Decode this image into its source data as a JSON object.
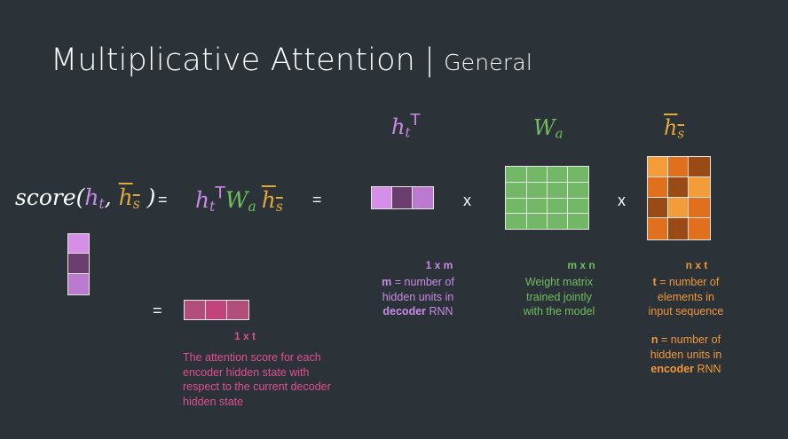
{
  "title": {
    "main": "Multiplicative Attention",
    "separator": "|",
    "sub": "General"
  },
  "equation": {
    "score_label": "score",
    "h": "h",
    "sub_t": "t",
    "sub_s": "s",
    "W": "W",
    "sub_a": "a",
    "T": "T",
    "equals": "=",
    "times": "x"
  },
  "labels": {
    "ht_header": "h",
    "wa_header": "W",
    "hs_header": "h"
  },
  "notes": {
    "ht_dim": "1 x m",
    "ht_desc_m": "m",
    "ht_desc_1": " = number of",
    "ht_desc_2": "hidden units in",
    "ht_desc_decoder": "decoder",
    "ht_desc_rnn": " RNN",
    "wa_dim": "m x n",
    "wa_desc_1": "Weight matrix",
    "wa_desc_2": "trained jointly",
    "wa_desc_3": "with the model",
    "hs_dim": "n x t",
    "hs_desc_t": "t",
    "hs_desc_1": " = number of",
    "hs_desc_2": "elements in",
    "hs_desc_3": "input sequence",
    "hs_n": "n",
    "hs_n_1": " = number of",
    "hs_n_2": "hidden units in",
    "hs_n_encoder": "encoder",
    "hs_n_rnn": " RNN",
    "score_dim": "1 x t",
    "score_desc_1": "The attention score for each",
    "score_desc_2": "encoder hidden state with",
    "score_desc_3": "respect to the current decoder",
    "score_desc_4": "hidden state"
  },
  "colors": {
    "background": "#2b3238",
    "purple": "#c98ae6",
    "green": "#6fbe5f",
    "gold": "#e0a93a",
    "pink": "#e04f8e",
    "orange": "#f2973a",
    "ht_cells": [
      "#d68ee8",
      "#6b3c6e",
      "#b97ad0"
    ],
    "wa_cell": "#72b866",
    "score_cells": [
      "#b14e7a",
      "#c2447c",
      "#b14e7a"
    ],
    "hs_grid": [
      [
        "#f39c3a",
        "#e0701e",
        "#9a4a14"
      ],
      [
        "#e0701e",
        "#9a4a14",
        "#f39c3a"
      ],
      [
        "#9a4a14",
        "#f39c3a",
        "#e0701e"
      ],
      [
        "#e0701e",
        "#9a4a14",
        "#e0701e"
      ]
    ]
  }
}
